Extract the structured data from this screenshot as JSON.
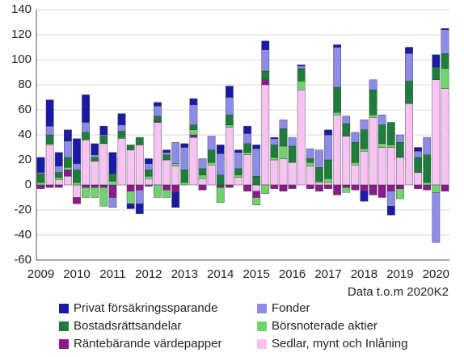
{
  "chart_data": {
    "type": "stacked_bar",
    "categories": [
      "2009",
      null,
      null,
      null,
      "2010",
      null,
      null,
      null,
      "2011",
      null,
      null,
      null,
      "2012",
      null,
      null,
      null,
      "2013",
      null,
      null,
      null,
      "2014",
      null,
      null,
      null,
      "2015",
      null,
      null,
      null,
      "2016",
      null,
      null,
      null,
      "2017",
      null,
      null,
      null,
      "2018",
      null,
      null,
      null,
      "2019",
      null,
      null,
      null,
      "2020",
      null
    ],
    "series": [
      {
        "name": "Privat försäkringssparande",
        "color": "#1a1aa6",
        "values": [
          12,
          21,
          11,
          9,
          20,
          22,
          9,
          7,
          17,
          9,
          -4,
          -8,
          4,
          3,
          2,
          -12,
          3,
          5,
          0,
          0,
          7,
          9,
          2,
          6,
          3,
          7,
          1,
          0,
          0,
          1,
          0,
          0,
          4,
          2,
          0,
          0,
          -8,
          0,
          0,
          -7,
          0,
          5,
          3,
          0,
          10,
          1
        ]
      },
      {
        "name": "Fonder",
        "color": "#8c8ce8",
        "values": [
          1,
          7,
          5,
          13,
          5,
          8,
          2,
          1,
          -8,
          5,
          0,
          -11,
          5,
          8,
          2,
          17,
          18,
          16,
          8,
          11,
          17,
          14,
          13,
          8,
          22,
          17,
          5,
          7,
          7,
          2,
          8,
          14,
          20,
          32,
          6,
          8,
          8,
          8,
          8,
          -12,
          6,
          22,
          5,
          14,
          -40,
          19
        ]
      },
      {
        "name": "Bostadsrättsandelar",
        "color": "#1f7d3c",
        "values": [
          7,
          7,
          4,
          8,
          10,
          6,
          3,
          6,
          6,
          5,
          4,
          6,
          5,
          4,
          4,
          0,
          10,
          4,
          5,
          10,
          8,
          8,
          5,
          7,
          7,
          7,
          10,
          14,
          13,
          10,
          3,
          11,
          15,
          20,
          10,
          16,
          15,
          20,
          15,
          18,
          12,
          18,
          12,
          22,
          10,
          12
        ]
      },
      {
        "name": "Börsnoterade aktier",
        "color": "#6fd36f",
        "values": [
          2,
          1,
          2,
          2,
          2,
          -8,
          -8,
          -15,
          3,
          1,
          -10,
          0,
          2,
          -10,
          -6,
          2,
          2,
          4,
          3,
          2,
          -12,
          2,
          2,
          2,
          -6,
          -7,
          2,
          10,
          0,
          7,
          3,
          1,
          3,
          2,
          -4,
          2,
          2,
          2,
          3,
          2,
          -8,
          0,
          0,
          2,
          -6,
          16
        ]
      },
      {
        "name": "Räntebärande värdepapper",
        "color": "#8b1a8f",
        "values": [
          -3,
          -2,
          -2,
          5,
          -5,
          -2,
          -2,
          -2,
          -10,
          0,
          -5,
          -4,
          -1,
          1,
          -4,
          -6,
          0,
          2,
          -4,
          0,
          -2,
          -2,
          0,
          -5,
          -5,
          4,
          -3,
          -5,
          -3,
          0,
          -3,
          -5,
          -3,
          -8,
          -2,
          -4,
          -5,
          -8,
          -10,
          -5,
          -3,
          0,
          -3,
          -4,
          0,
          -5
        ]
      },
      {
        "name": "Sedlar, mynt och Inlåning",
        "color": "#f7c3f2",
        "values": [
          0,
          32,
          4,
          7,
          -10,
          36,
          19,
          33,
          0,
          37,
          28,
          32,
          5,
          50,
          20,
          15,
          0,
          38,
          5,
          16,
          0,
          46,
          6,
          24,
          -5,
          80,
          20,
          21,
          18,
          76,
          15,
          2,
          2,
          56,
          39,
          16,
          27,
          54,
          30,
          30,
          22,
          65,
          10,
          0,
          84,
          77
        ]
      }
    ],
    "ylim": [
      -60,
      140
    ],
    "yticks": [
      -60,
      -40,
      -20,
      0,
      20,
      40,
      60,
      80,
      100,
      120,
      140
    ],
    "grid": true,
    "note": "Data t.o.m 2020K2"
  }
}
